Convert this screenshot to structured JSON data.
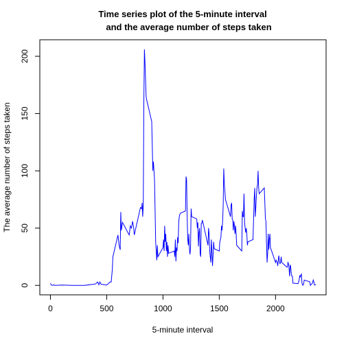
{
  "chart_data": {
    "type": "line",
    "title": [
      "Time series plot of the 5-minute interval",
      "and the average number of steps taken"
    ],
    "x_label": "5-minute interval",
    "y_label": "The average number of steps taken",
    "xlim": [
      -94.2,
      2449.2
    ],
    "ylim": [
      -8.25,
      214.4
    ],
    "xticks": [
      0,
      500,
      1000,
      1500,
      2000
    ],
    "yticks": [
      0,
      50,
      100,
      150,
      200
    ],
    "series": [
      {
        "color": "#0000ff",
        "x": [
          0,
          10,
          20,
          30,
          40,
          100,
          200,
          300,
          400,
          420,
          430,
          440,
          450,
          500,
          520,
          530,
          540,
          550,
          555,
          600,
          610,
          620,
          625,
          630,
          640,
          700,
          710,
          720,
          730,
          740,
          745,
          800,
          810,
          815,
          820,
          825,
          830,
          835,
          840,
          845,
          850,
          855,
          900,
          910,
          915,
          920,
          925,
          930,
          935,
          940,
          945,
          950,
          955,
          1000,
          1005,
          1010,
          1015,
          1020,
          1025,
          1030,
          1035,
          1040,
          1045,
          1050,
          1100,
          1105,
          1110,
          1115,
          1120,
          1125,
          1130,
          1135,
          1140,
          1145,
          1150,
          1155,
          1200,
          1205,
          1210,
          1215,
          1220,
          1225,
          1230,
          1235,
          1240,
          1245,
          1250,
          1255,
          1300,
          1305,
          1310,
          1315,
          1320,
          1325,
          1330,
          1335,
          1340,
          1345,
          1350,
          1355,
          1400,
          1405,
          1410,
          1415,
          1420,
          1425,
          1430,
          1435,
          1440,
          1445,
          1450,
          1455,
          1500,
          1505,
          1510,
          1515,
          1520,
          1525,
          1530,
          1535,
          1540,
          1545,
          1550,
          1555,
          1600,
          1605,
          1610,
          1615,
          1620,
          1625,
          1630,
          1635,
          1640,
          1645,
          1650,
          1655,
          1700,
          1705,
          1710,
          1715,
          1720,
          1725,
          1730,
          1735,
          1740,
          1745,
          1750,
          1755,
          1800,
          1805,
          1810,
          1815,
          1820,
          1825,
          1830,
          1835,
          1840,
          1845,
          1850,
          1855,
          1900,
          1905,
          1910,
          1915,
          1920,
          1925,
          1930,
          1935,
          1940,
          1945,
          1950,
          1955,
          2000,
          2005,
          2010,
          2015,
          2020,
          2025,
          2030,
          2035,
          2040,
          2045,
          2050,
          2055,
          2100,
          2105,
          2110,
          2115,
          2120,
          2125,
          2130,
          2135,
          2140,
          2145,
          2150,
          2155,
          2200,
          2205,
          2210,
          2215,
          2220,
          2225,
          2230,
          2235,
          2240,
          2245,
          2250,
          2255,
          2300,
          2305,
          2310,
          2315,
          2320,
          2325,
          2330,
          2335,
          2340,
          2345,
          2350,
          2355
        ],
        "values": [
          1.7,
          0.1,
          0.1,
          0.5,
          0,
          0.3,
          0,
          0,
          1.2,
          3,
          0.5,
          3,
          1,
          0.3,
          2,
          3,
          3,
          14,
          25,
          44,
          35,
          31,
          64,
          48,
          55,
          44,
          52,
          50,
          56,
          50,
          44,
          68,
          67,
          72,
          60,
          70,
          160,
          206,
          195,
          180,
          165,
          162,
          143,
          100,
          108,
          100,
          92,
          65,
          38,
          30,
          22,
          35,
          25,
          33,
          40,
          30,
          52,
          38,
          45,
          30,
          38,
          25,
          35,
          28,
          30,
          25,
          40,
          21,
          33,
          30,
          42,
          37,
          55,
          60,
          62,
          63,
          65,
          95,
          92,
          60,
          40,
          35,
          45,
          32,
          27,
          33,
          67,
          60,
          58,
          50,
          55,
          34,
          46,
          50,
          28,
          25,
          54,
          54,
          57,
          55,
          35,
          50,
          45,
          30,
          25,
          20,
          40,
          30,
          17,
          26,
          38,
          32,
          30,
          38,
          40,
          42,
          52,
          48,
          56,
          70,
          102,
          88,
          82,
          75,
          60,
          70,
          72,
          58,
          57,
          48,
          56,
          52,
          45,
          52,
          45,
          35,
          30,
          65,
          60,
          60,
          80,
          55,
          50,
          46,
          50,
          45,
          35,
          38,
          40,
          58,
          75,
          85,
          60,
          68,
          78,
          85,
          88,
          100,
          85,
          80,
          85,
          72,
          58,
          56,
          36,
          20,
          28,
          45,
          31,
          40,
          45,
          33,
          20,
          22,
          21,
          20,
          17,
          23,
          26,
          20,
          19,
          20,
          25,
          20,
          16,
          16,
          20,
          19,
          15,
          8,
          18,
          16,
          10,
          8,
          8,
          2,
          1.5,
          3,
          4.7,
          8.7,
          7.4,
          8.9,
          9.8,
          2,
          0.4,
          0.1,
          1.6,
          4.6,
          3.3,
          3,
          0,
          0.8,
          1,
          1.6,
          2.6,
          4.7,
          3.3,
          0.6,
          0.2,
          1.1
        ]
      }
    ]
  }
}
